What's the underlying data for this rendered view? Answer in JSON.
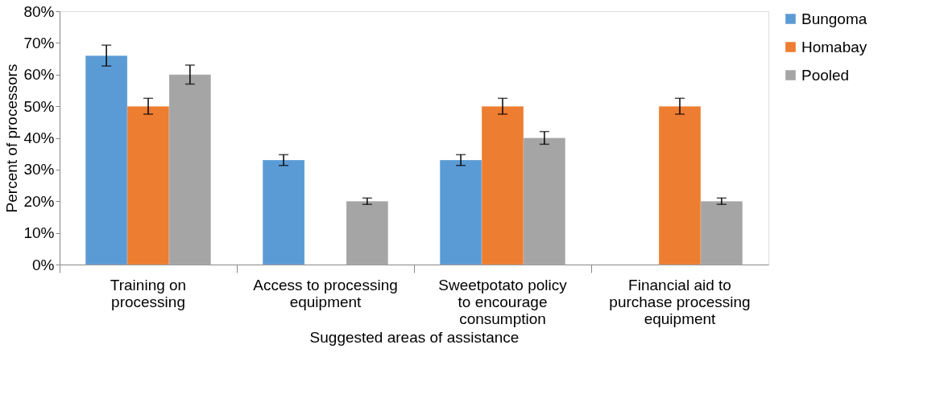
{
  "chart_data": {
    "type": "bar",
    "xlabel": "Suggested areas of assistance",
    "ylabel": "Percent of processors",
    "categories": [
      "Training on processing",
      "Access to processing equipment",
      "Sweetpotato policy to encourage consumption",
      "Financial aid to purchase processing equipment"
    ],
    "series": [
      {
        "name": "Bungoma",
        "color": "#5b9bd5",
        "values": [
          66,
          33,
          33,
          null
        ],
        "errors": [
          3.3,
          1.7,
          1.7,
          null
        ]
      },
      {
        "name": "Homabay",
        "color": "#ed7d31",
        "values": [
          50,
          null,
          50,
          50
        ],
        "errors": [
          2.5,
          null,
          2.5,
          2.5
        ]
      },
      {
        "name": "Pooled",
        "color": "#a5a5a5",
        "values": [
          60,
          20,
          40,
          20
        ],
        "errors": [
          3,
          1,
          2,
          1
        ]
      }
    ],
    "ylim": [
      0,
      80
    ],
    "yticks": [
      {
        "value": 0,
        "label": "0%"
      },
      {
        "value": 10,
        "label": "10%"
      },
      {
        "value": 20,
        "label": "20%"
      },
      {
        "value": 30,
        "label": "30%"
      },
      {
        "value": 40,
        "label": "40%"
      },
      {
        "value": 50,
        "label": "50%"
      },
      {
        "value": 60,
        "label": "60%"
      },
      {
        "value": 70,
        "label": "70%"
      },
      {
        "value": 80,
        "label": "80%"
      }
    ],
    "grid": false,
    "legend": "right"
  }
}
